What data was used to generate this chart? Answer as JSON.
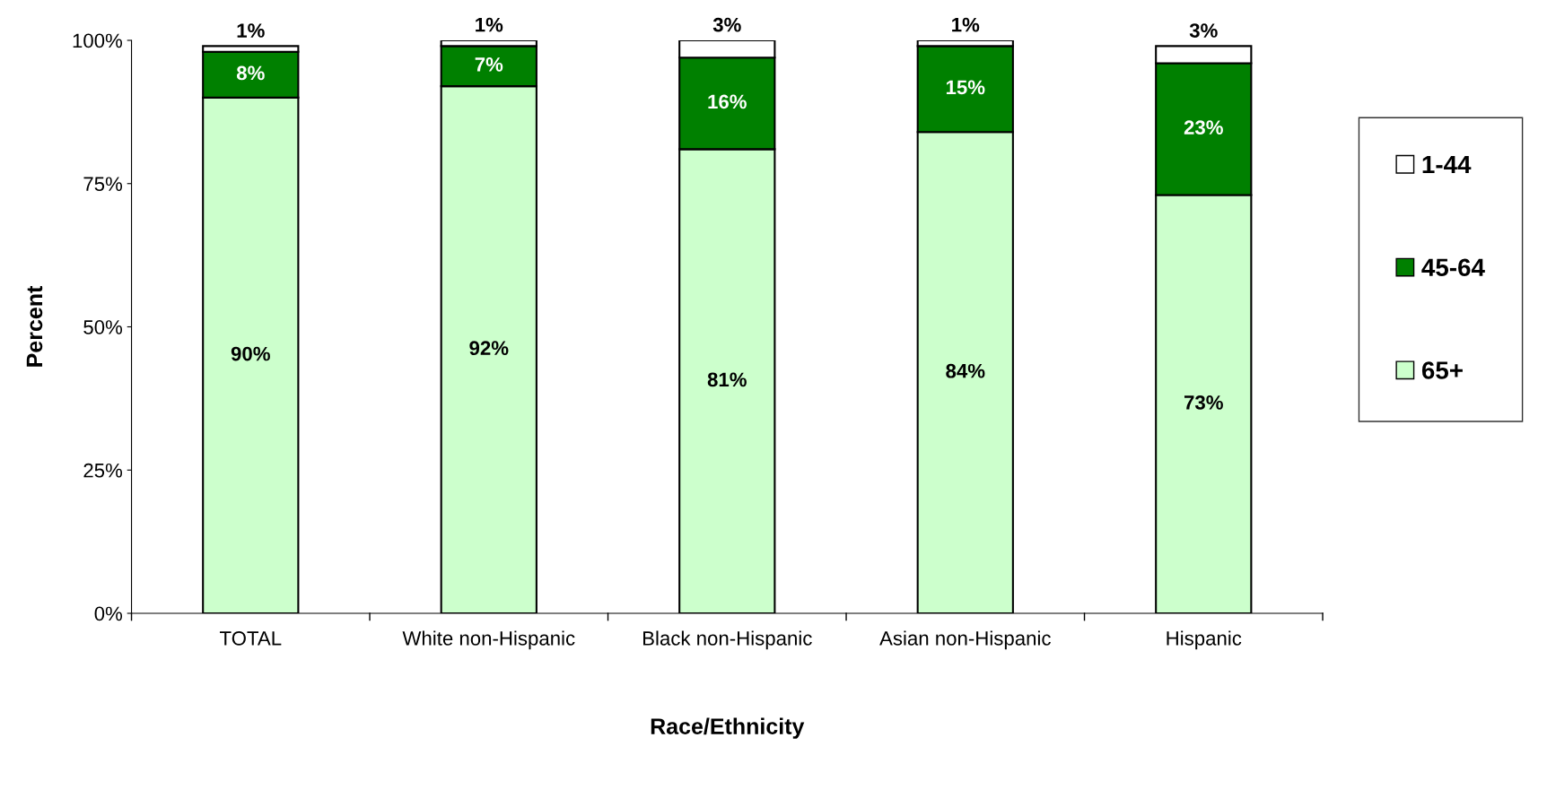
{
  "chart_data": {
    "type": "bar",
    "stacked": true,
    "xlabel": "Race/Ethnicity",
    "ylabel": "Percent",
    "categories": [
      "TOTAL",
      "White non-Hispanic",
      "Black non-Hispanic",
      "Asian non-Hispanic",
      "Hispanic"
    ],
    "series": [
      {
        "name": "65+",
        "color": "#ccffcc",
        "values": [
          90,
          92,
          81,
          84,
          73
        ],
        "value_labels": [
          "90%",
          "92%",
          "81%",
          "84%",
          "73%"
        ]
      },
      {
        "name": "45-64",
        "color": "#008000",
        "values": [
          8,
          7,
          16,
          15,
          23
        ],
        "value_labels": [
          "8%",
          "7%",
          "16%",
          "15%",
          "23%"
        ]
      },
      {
        "name": "1-44",
        "color": "#ffffff",
        "values": [
          1,
          1,
          3,
          1,
          3
        ],
        "value_labels": [
          "1%",
          "1%",
          "3%",
          "1%",
          "3%"
        ]
      }
    ],
    "ylim": [
      0,
      100
    ],
    "yticks": [
      {
        "value": 0,
        "label": "0%"
      },
      {
        "value": 25,
        "label": "25%"
      },
      {
        "value": 50,
        "label": "50%"
      },
      {
        "value": 75,
        "label": "75%"
      },
      {
        "value": 100,
        "label": "100%"
      }
    ],
    "legend": "right",
    "grid": false
  }
}
